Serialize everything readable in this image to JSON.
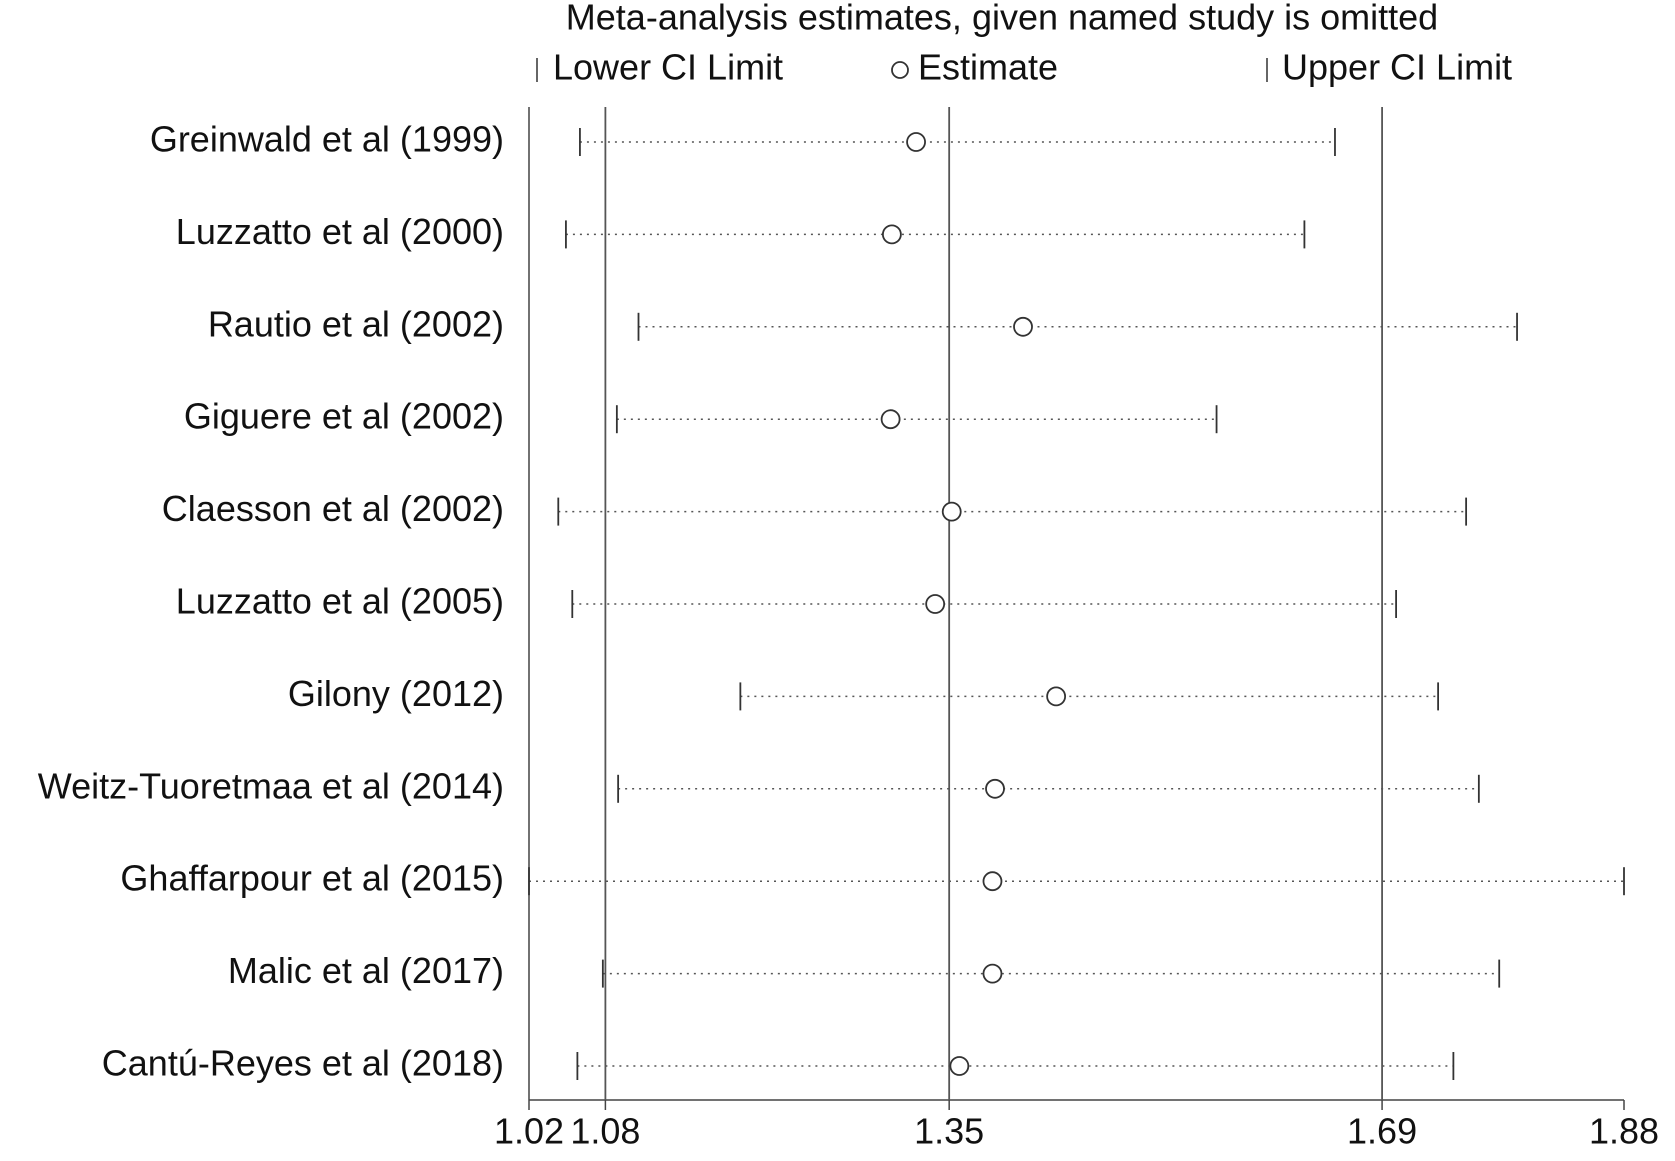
{
  "chart_data": {
    "type": "interval",
    "title": "Meta-analysis estimates, given named study is omitted",
    "categories": [
      "Greinwald et al (1999)",
      "Luzzatto et al (2000)",
      "Rautio et al (2002)",
      "Giguere et al (2002)",
      "Claesson et al (2002)",
      "Luzzatto et al (2005)",
      "Gilony (2012)",
      "Weitz-Tuoretmaa et al (2014)",
      "Ghaffarpour et al (2015)",
      "Malic et al (2017)",
      "Cantú-Reyes et al (2018)"
    ],
    "series": [
      {
        "name": "Lower CI Limit",
        "color": "#333333",
        "values": [
          1.06,
          1.049,
          1.106,
          1.089,
          1.043,
          1.054,
          1.186,
          1.09,
          1.02,
          1.078,
          1.058
        ]
      },
      {
        "name": "Estimate",
        "color": "#333333",
        "values": [
          1.324,
          1.305,
          1.408,
          1.304,
          1.352,
          1.339,
          1.434,
          1.386,
          1.384,
          1.384,
          1.358
        ]
      },
      {
        "name": "Upper CI Limit",
        "color": "#333333",
        "values": [
          1.653,
          1.629,
          1.796,
          1.56,
          1.756,
          1.701,
          1.734,
          1.766,
          1.88,
          1.782,
          1.746
        ]
      }
    ],
    "xlim": [
      1.02,
      1.88
    ],
    "xticks": [
      1.02,
      1.08,
      1.35,
      1.69,
      1.88
    ]
  }
}
